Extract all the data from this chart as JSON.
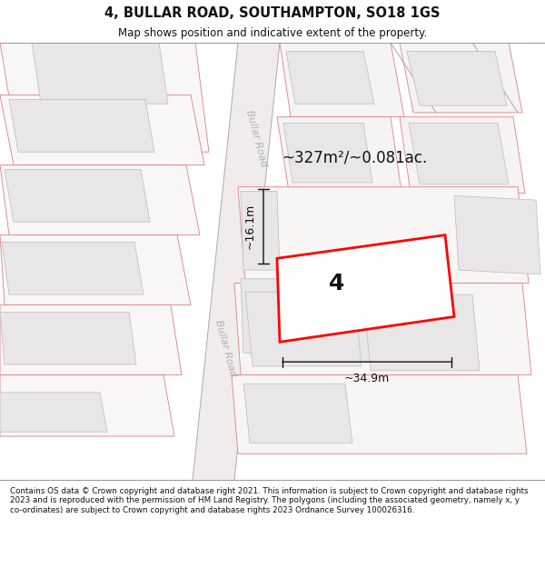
{
  "title": "4, BULLAR ROAD, SOUTHAMPTON, SO18 1GS",
  "subtitle": "Map shows position and indicative extent of the property.",
  "footer": "Contains OS data © Crown copyright and database right 2021. This information is subject to Crown copyright and database rights 2023 and is reproduced with the permission of HM Land Registry. The polygons (including the associated geometry, namely x, y co-ordinates) are subject to Crown copyright and database rights 2023 Ordnance Survey 100026316.",
  "bg_color": "#ffffff",
  "highlight_color": "#ff0000",
  "dim_color": "#222222",
  "road_label": "Bullar Road",
  "area_label": "~327m²/~0.081ac.",
  "width_label": "~34.9m",
  "height_label": "~16.1m",
  "plot_number": "4"
}
